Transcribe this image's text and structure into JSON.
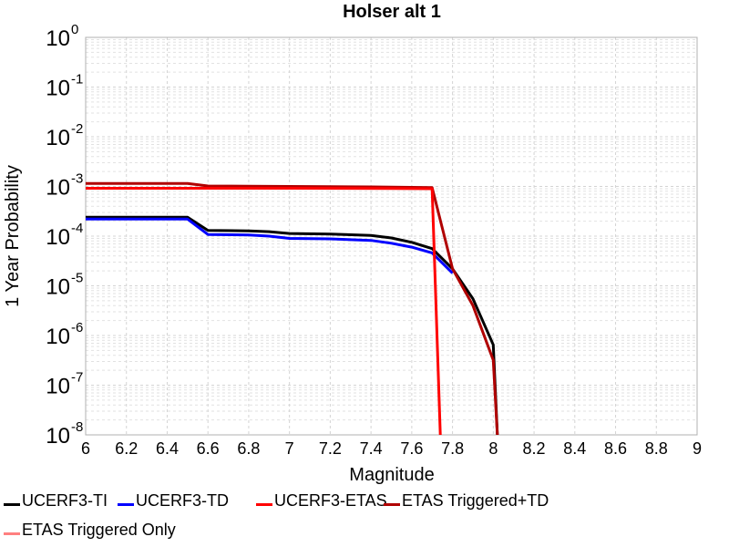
{
  "chart_data": {
    "type": "line",
    "title": "Holser alt 1",
    "xlabel": "Magnitude",
    "ylabel": "1 Year Probability",
    "xlim": [
      6,
      9
    ],
    "ylim": [
      1e-08,
      1
    ],
    "yscale": "log",
    "grid": true,
    "legend_position": "bottom",
    "x_ticks": [
      "6",
      "6.2",
      "6.4",
      "6.6",
      "6.8",
      "7",
      "7.2",
      "7.4",
      "7.6",
      "7.8",
      "8",
      "8.2",
      "8.4",
      "8.6",
      "8.8",
      "9"
    ],
    "y_tick_exponents": [
      "0",
      "-1",
      "-2",
      "-3",
      "-4",
      "-5",
      "-6",
      "-7",
      "-8"
    ],
    "y_tick_base": "10",
    "series": [
      {
        "name": "UCERF3-TI",
        "color": "#000000",
        "x": [
          6.0,
          6.5,
          6.6,
          6.8,
          6.9,
          7.0,
          7.2,
          7.4,
          7.5,
          7.6,
          7.7,
          7.8,
          7.9,
          8.0,
          8.02
        ],
        "y": [
          0.00024,
          0.00024,
          0.00013,
          0.000128,
          0.000123,
          0.000113,
          0.00011,
          0.000103,
          9.2e-05,
          7.5e-05,
          5.6e-05,
          2.2e-05,
          5.5e-06,
          6.5e-07,
          1e-08
        ]
      },
      {
        "name": "UCERF3-TD",
        "color": "#0000ff",
        "x": [
          6.0,
          6.5,
          6.6,
          6.8,
          6.9,
          7.0,
          7.2,
          7.4,
          7.5,
          7.6,
          7.7,
          7.8
        ],
        "y": [
          0.00022,
          0.00022,
          0.000108,
          0.000105,
          0.0001,
          9e-05,
          8.8e-05,
          8.2e-05,
          7.2e-05,
          6e-05,
          4.6e-05,
          1.8e-05
        ]
      },
      {
        "name": "UCERF3-ETAS",
        "color": "#ff0000",
        "x": [
          6.0,
          6.5,
          6.6,
          7.0,
          7.5,
          7.7,
          7.74
        ],
        "y": [
          0.00092,
          0.00092,
          0.00092,
          0.00092,
          0.00091,
          0.0009,
          1e-08
        ]
      },
      {
        "name": "ETAS Triggered+TD",
        "color": "#b00000",
        "x": [
          6.0,
          6.5,
          6.6,
          6.8,
          7.0,
          7.2,
          7.4,
          7.5,
          7.6,
          7.7,
          7.8,
          7.9,
          8.0,
          8.02
        ],
        "y": [
          0.00115,
          0.00115,
          0.00102,
          0.00101,
          0.001,
          0.00099,
          0.00098,
          0.00097,
          0.00096,
          0.00095,
          2.2e-05,
          4e-06,
          3.2e-07,
          1e-08
        ]
      },
      {
        "name": "ETAS Triggered Only",
        "color": "#ff8080",
        "x": [],
        "y": []
      }
    ]
  }
}
